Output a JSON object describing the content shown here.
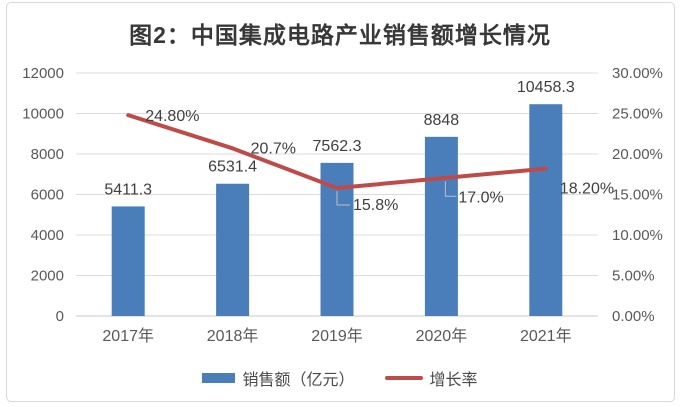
{
  "chart_data": {
    "type": "combo-bar-line",
    "title": "图2：中国集成电路产业销售额增长情况",
    "categories": [
      "2017年",
      "2018年",
      "2019年",
      "2020年",
      "2021年"
    ],
    "series": [
      {
        "name": "销售额（亿元）",
        "type": "bar",
        "axis": "left",
        "color": "#4a7ebb",
        "values": [
          5411.3,
          6531.4,
          7562.3,
          8848,
          10458.3
        ],
        "labels": [
          "5411.3",
          "6531.4",
          "7562.3",
          "8848",
          "10458.3"
        ]
      },
      {
        "name": "增长率",
        "type": "line",
        "axis": "right",
        "color": "#be4b48",
        "values": [
          24.8,
          20.7,
          15.8,
          17.0,
          18.2
        ],
        "labels": [
          "24.80%",
          "20.7%",
          "15.8%",
          "17.0%",
          "18.20%"
        ]
      }
    ],
    "left_axis": {
      "min": 0,
      "max": 12000,
      "step": 2000,
      "tick_labels": [
        "0",
        "2000",
        "4000",
        "6000",
        "8000",
        "10000",
        "12000"
      ]
    },
    "right_axis": {
      "min": 0,
      "max": 30,
      "step": 5,
      "tick_labels": [
        "0.00%",
        "5.00%",
        "10.00%",
        "15.00%",
        "20.00%",
        "25.00%",
        "30.00%"
      ]
    },
    "grid": true,
    "legend_position": "bottom"
  },
  "colors": {
    "bar": "#4a7ebb",
    "line": "#be4b48",
    "grid": "#dcdcdc",
    "baseline": "#c9c9c9",
    "leader": "#bfbfbf",
    "axis_text": "#595959",
    "label_text": "#3f3f3f",
    "border": "#d9d9d9"
  }
}
